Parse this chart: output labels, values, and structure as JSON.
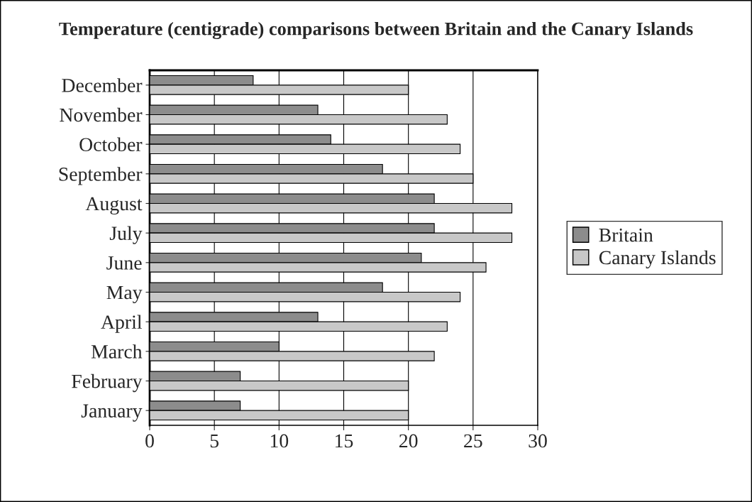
{
  "chart_data": {
    "type": "bar",
    "orientation": "horizontal",
    "title": "Temperature (centigrade) comparisons between Britain and the Canary Islands",
    "categories": [
      "December",
      "November",
      "October",
      "September",
      "August",
      "July",
      "June",
      "May",
      "April",
      "March",
      "February",
      "January"
    ],
    "series": [
      {
        "name": "Britain",
        "color": "#8c8c8c",
        "values": [
          8,
          13,
          14,
          18,
          22,
          22,
          21,
          18,
          13,
          10,
          7,
          7
        ]
      },
      {
        "name": "Canary Islands",
        "color": "#c8c8c8",
        "values": [
          20,
          23,
          24,
          25,
          28,
          28,
          26,
          24,
          23,
          22,
          20,
          20
        ]
      }
    ],
    "xlim": [
      0,
      30
    ],
    "xticks": [
      0,
      5,
      10,
      15,
      20,
      25,
      30
    ],
    "grid": "x",
    "legend": "right"
  }
}
